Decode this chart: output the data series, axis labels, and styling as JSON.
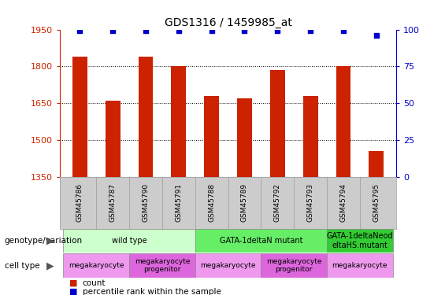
{
  "title": "GDS1316 / 1459985_at",
  "samples": [
    "GSM45786",
    "GSM45787",
    "GSM45790",
    "GSM45791",
    "GSM45788",
    "GSM45789",
    "GSM45792",
    "GSM45793",
    "GSM45794",
    "GSM45795"
  ],
  "counts": [
    1840,
    1660,
    1840,
    1800,
    1680,
    1670,
    1785,
    1680,
    1800,
    1455
  ],
  "percentiles": [
    99,
    99,
    99,
    99,
    99,
    99,
    99,
    99,
    99,
    96
  ],
  "ylim_left": [
    1350,
    1950
  ],
  "ylim_right": [
    0,
    100
  ],
  "yticks_left": [
    1350,
    1500,
    1650,
    1800,
    1950
  ],
  "yticks_right": [
    0,
    25,
    50,
    75,
    100
  ],
  "bar_color": "#cc2200",
  "dot_color": "#0000cc",
  "bar_width": 0.45,
  "genotype_groups": [
    {
      "label": "wild type",
      "start": 0,
      "end": 4,
      "color": "#ccffcc"
    },
    {
      "label": "GATA-1deltaN mutant",
      "start": 4,
      "end": 8,
      "color": "#66ee66"
    },
    {
      "label": "GATA-1deltaNeod\neltaHS.mutant",
      "start": 8,
      "end": 10,
      "color": "#33cc33"
    }
  ],
  "cell_type_groups": [
    {
      "label": "megakaryocyte",
      "start": 0,
      "end": 2,
      "color": "#ee99ee"
    },
    {
      "label": "megakaryocyte\nprogenitor",
      "start": 2,
      "end": 4,
      "color": "#dd66dd"
    },
    {
      "label": "megakaryocyte",
      "start": 4,
      "end": 6,
      "color": "#ee99ee"
    },
    {
      "label": "megakaryocyte\nprogenitor",
      "start": 6,
      "end": 8,
      "color": "#dd66dd"
    },
    {
      "label": "megakaryocyte",
      "start": 8,
      "end": 10,
      "color": "#ee99ee"
    }
  ],
  "left_axis_color": "#cc2200",
  "right_axis_color": "#0000cc",
  "sample_bg_color": "#cccccc",
  "legend_count_color": "#cc2200",
  "legend_pct_color": "#0000cc"
}
